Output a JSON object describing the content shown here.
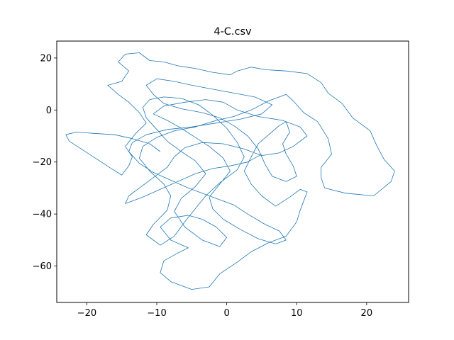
{
  "chart_data": {
    "type": "line",
    "title": "4-C.csv",
    "xlabel": "",
    "ylabel": "",
    "xlim": [
      -24.3,
      26.0
    ],
    "ylim": [
      -74.0,
      26.5
    ],
    "xticks": [
      -20,
      -10,
      0,
      10,
      20
    ],
    "yticks": [
      20,
      0,
      -20,
      -40,
      -60
    ],
    "xtick_labels": [
      "−20",
      "−10",
      "0",
      "10",
      "20"
    ],
    "ytick_labels": [
      "20",
      "0",
      "−20",
      "−40",
      "−60"
    ],
    "grid": false,
    "legend": "none",
    "series_color": "#1f77b4",
    "series": [
      {
        "points": [
          [
            -9.5,
            -16.0
          ],
          [
            -11.0,
            -13.0
          ],
          [
            -13.5,
            -11.0
          ],
          [
            -16.0,
            -9.5
          ],
          [
            -19.0,
            -9.0
          ],
          [
            -21.5,
            -8.5
          ],
          [
            -23.0,
            -9.5
          ],
          [
            -22.5,
            -12.0
          ],
          [
            -20.5,
            -15.5
          ],
          [
            -18.5,
            -19.0
          ],
          [
            -16.5,
            -22.5
          ],
          [
            -15.0,
            -25.0
          ],
          [
            -14.0,
            -21.5
          ],
          [
            -13.5,
            -18.0
          ],
          [
            -14.5,
            -14.0
          ],
          [
            -13.0,
            -9.0
          ],
          [
            -11.5,
            -5.0
          ],
          [
            -12.5,
            -1.0
          ],
          [
            -14.0,
            3.0
          ],
          [
            -15.5,
            6.0
          ],
          [
            -17.0,
            9.5
          ],
          [
            -15.0,
            11.0
          ],
          [
            -14.0,
            15.0
          ],
          [
            -15.5,
            18.5
          ],
          [
            -14.5,
            21.5
          ],
          [
            -12.5,
            22.0
          ],
          [
            -11.0,
            19.0
          ],
          [
            -9.0,
            18.5
          ],
          [
            -7.0,
            17.0
          ],
          [
            -4.5,
            16.0
          ],
          [
            -2.0,
            14.5
          ],
          [
            0.5,
            13.5
          ],
          [
            1.5,
            15.0
          ],
          [
            3.5,
            16.5
          ],
          [
            5.5,
            15.5
          ],
          [
            8.5,
            15.0
          ],
          [
            11.5,
            14.0
          ],
          [
            13.5,
            10.5
          ],
          [
            14.5,
            6.5
          ],
          [
            16.5,
            2.5
          ],
          [
            18.0,
            -3.0
          ],
          [
            20.5,
            -8.0
          ],
          [
            21.5,
            -14.0
          ],
          [
            22.5,
            -19.0
          ],
          [
            24.0,
            -23.5
          ],
          [
            23.5,
            -27.5
          ],
          [
            21.0,
            -33.0
          ],
          [
            17.0,
            -32.0
          ],
          [
            14.0,
            -30.0
          ],
          [
            13.5,
            -26.0
          ],
          [
            13.5,
            -22.0
          ],
          [
            15.0,
            -17.0
          ],
          [
            14.5,
            -11.0
          ],
          [
            13.0,
            -4.5
          ],
          [
            11.0,
            -1.0
          ],
          [
            9.5,
            3.5
          ],
          [
            8.5,
            6.0
          ],
          [
            6.0,
            3.5
          ],
          [
            3.5,
            0.0
          ],
          [
            1.0,
            -2.5
          ],
          [
            -1.5,
            -4.0
          ],
          [
            -4.5,
            -6.5
          ],
          [
            -7.5,
            -8.0
          ],
          [
            -10.0,
            -10.5
          ],
          [
            -12.0,
            -14.0
          ],
          [
            -12.5,
            -18.5
          ],
          [
            -11.0,
            -23.5
          ],
          [
            -9.0,
            -28.5
          ],
          [
            -8.0,
            -33.0
          ],
          [
            -8.5,
            -38.5
          ],
          [
            -10.5,
            -44.0
          ],
          [
            -11.5,
            -48.0
          ],
          [
            -9.5,
            -52.0
          ],
          [
            -7.5,
            -48.5
          ],
          [
            -6.0,
            -43.0
          ],
          [
            -4.5,
            -38.0
          ],
          [
            -3.0,
            -33.0
          ],
          [
            -1.0,
            -28.0
          ],
          [
            1.5,
            -23.0
          ],
          [
            2.5,
            -18.0
          ],
          [
            1.5,
            -12.5
          ],
          [
            0.0,
            -7.0
          ],
          [
            -2.0,
            -2.0
          ],
          [
            -4.0,
            2.0
          ],
          [
            -6.5,
            4.5
          ],
          [
            -9.0,
            5.0
          ],
          [
            -11.0,
            4.0
          ],
          [
            -12.0,
            1.0
          ],
          [
            -11.5,
            -3.0
          ],
          [
            -10.0,
            -7.5
          ],
          [
            -8.5,
            -12.0
          ],
          [
            -6.5,
            -16.0
          ],
          [
            -4.5,
            -19.5
          ],
          [
            -3.0,
            -24.5
          ],
          [
            -4.5,
            -29.5
          ],
          [
            -6.5,
            -34.0
          ],
          [
            -7.5,
            -39.0
          ],
          [
            -6.0,
            -45.0
          ],
          [
            -3.5,
            -50.0
          ],
          [
            -1.0,
            -52.5
          ],
          [
            0.0,
            -49.0
          ],
          [
            -1.5,
            -45.0
          ],
          [
            -3.5,
            -42.0
          ],
          [
            -5.5,
            -40.5
          ],
          [
            -8.0,
            -41.5
          ],
          [
            -9.5,
            -45.0
          ],
          [
            -8.0,
            -50.0
          ],
          [
            -5.5,
            -53.0
          ],
          [
            -7.0,
            -55.0
          ],
          [
            -9.0,
            -58.0
          ],
          [
            -9.5,
            -62.5
          ],
          [
            -8.0,
            -66.0
          ],
          [
            -5.0,
            -69.0
          ],
          [
            -2.5,
            -68.0
          ],
          [
            -1.0,
            -63.0
          ],
          [
            1.5,
            -58.5
          ],
          [
            3.5,
            -54.5
          ],
          [
            6.0,
            -51.0
          ],
          [
            8.5,
            -48.5
          ],
          [
            10.0,
            -43.0
          ],
          [
            10.5,
            -38.5
          ],
          [
            11.5,
            -31.5
          ],
          [
            10.5,
            -30.5
          ],
          [
            9.0,
            -33.5
          ],
          [
            7.0,
            -37.0
          ],
          [
            5.0,
            -33.0
          ],
          [
            3.5,
            -28.5
          ],
          [
            2.5,
            -23.5
          ],
          [
            3.5,
            -18.0
          ],
          [
            4.5,
            -13.0
          ],
          [
            6.0,
            -9.5
          ],
          [
            7.5,
            -6.0
          ],
          [
            8.5,
            -4.5
          ],
          [
            9.0,
            -8.5
          ],
          [
            8.0,
            -13.0
          ],
          [
            8.5,
            -17.0
          ],
          [
            9.5,
            -21.5
          ],
          [
            10.0,
            -25.5
          ],
          [
            8.5,
            -27.5
          ],
          [
            6.5,
            -25.5
          ],
          [
            5.5,
            -21.0
          ],
          [
            4.5,
            -15.0
          ],
          [
            3.0,
            -10.0
          ],
          [
            1.0,
            -6.0
          ],
          [
            -1.0,
            -3.0
          ],
          [
            -3.5,
            -1.0
          ],
          [
            -6.5,
            0.5
          ],
          [
            -9.0,
            2.5
          ],
          [
            -10.5,
            6.0
          ],
          [
            -11.5,
            9.5
          ],
          [
            -10.0,
            12.0
          ],
          [
            -7.5,
            11.0
          ],
          [
            -5.0,
            9.5
          ],
          [
            -2.0,
            8.0
          ],
          [
            1.0,
            6.5
          ],
          [
            4.0,
            5.0
          ],
          [
            6.5,
            2.0
          ],
          [
            5.0,
            -1.5
          ],
          [
            2.0,
            -3.5
          ],
          [
            -1.5,
            -5.0
          ],
          [
            -5.0,
            -6.5
          ],
          [
            -8.5,
            -7.5
          ],
          [
            -11.5,
            -9.5
          ],
          [
            -13.5,
            -12.5
          ],
          [
            -14.0,
            -16.0
          ],
          [
            -12.5,
            -20.5
          ],
          [
            -10.5,
            -24.0
          ],
          [
            -8.0,
            -27.0
          ],
          [
            -5.5,
            -30.0
          ],
          [
            -3.0,
            -32.5
          ],
          [
            -1.0,
            -34.5
          ],
          [
            1.0,
            -36.5
          ],
          [
            3.0,
            -40.0
          ],
          [
            5.5,
            -44.0
          ],
          [
            7.5,
            -46.5
          ],
          [
            8.5,
            -50.0
          ],
          [
            7.0,
            -51.5
          ],
          [
            4.5,
            -49.5
          ],
          [
            2.0,
            -46.0
          ],
          [
            -0.5,
            -42.0
          ],
          [
            -2.0,
            -38.0
          ],
          [
            -2.5,
            -33.5
          ],
          [
            -1.0,
            -28.5
          ],
          [
            0.5,
            -23.5
          ],
          [
            -0.5,
            -18.5
          ],
          [
            -2.5,
            -14.0
          ],
          [
            -4.5,
            -10.5
          ],
          [
            -6.5,
            -7.0
          ],
          [
            -8.5,
            -4.0
          ],
          [
            -10.5,
            -1.5
          ],
          [
            -9.0,
            1.5
          ],
          [
            -6.0,
            3.0
          ],
          [
            -3.0,
            4.0
          ],
          [
            -0.5,
            3.0
          ],
          [
            1.5,
            0.0
          ],
          [
            4.5,
            -2.5
          ],
          [
            8.0,
            -4.0
          ],
          [
            10.5,
            -6.5
          ],
          [
            11.5,
            -10.0
          ],
          [
            9.5,
            -14.0
          ],
          [
            7.5,
            -16.5
          ],
          [
            5.0,
            -17.5
          ],
          [
            2.5,
            -15.0
          ],
          [
            -0.5,
            -13.0
          ],
          [
            -3.5,
            -12.5
          ],
          [
            -6.0,
            -14.5
          ],
          [
            -7.5,
            -18.0
          ],
          [
            -8.5,
            -22.0
          ],
          [
            -10.5,
            -26.0
          ],
          [
            -12.5,
            -30.0
          ],
          [
            -14.0,
            -33.0
          ],
          [
            -14.5,
            -36.0
          ],
          [
            -12.0,
            -33.5
          ],
          [
            -9.5,
            -30.5
          ],
          [
            -7.0,
            -27.5
          ],
          [
            -4.5,
            -24.5
          ],
          [
            -2.0,
            -22.5
          ],
          [
            0.5,
            -21.5
          ],
          [
            3.0,
            -20.0
          ],
          [
            5.0,
            -17.0
          ]
        ]
      }
    ]
  }
}
